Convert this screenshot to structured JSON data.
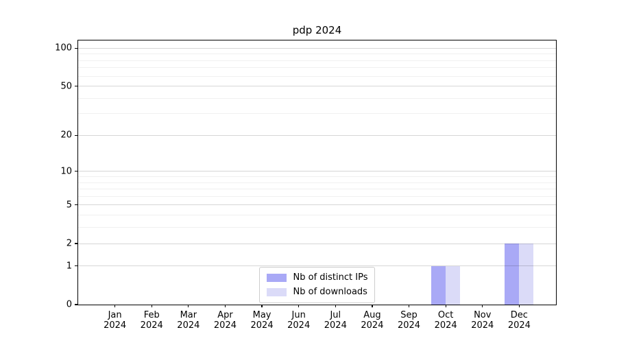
{
  "chart_data": {
    "type": "bar",
    "title": "pdp 2024",
    "categories": [
      {
        "month": "Jan",
        "year": "2024"
      },
      {
        "month": "Feb",
        "year": "2024"
      },
      {
        "month": "Mar",
        "year": "2024"
      },
      {
        "month": "Apr",
        "year": "2024"
      },
      {
        "month": "May",
        "year": "2024"
      },
      {
        "month": "Jun",
        "year": "2024"
      },
      {
        "month": "Jul",
        "year": "2024"
      },
      {
        "month": "Aug",
        "year": "2024"
      },
      {
        "month": "Sep",
        "year": "2024"
      },
      {
        "month": "Oct",
        "year": "2024"
      },
      {
        "month": "Nov",
        "year": "2024"
      },
      {
        "month": "Dec",
        "year": "2024"
      }
    ],
    "series": [
      {
        "name": "Nb of distinct IPs",
        "color": "#a9a9f6",
        "values": [
          0,
          0,
          0,
          0,
          0,
          0,
          0,
          0,
          0,
          1,
          0,
          2
        ]
      },
      {
        "name": "Nb of downloads",
        "color": "#dbdbf8",
        "values": [
          0,
          0,
          0,
          0,
          0,
          0,
          0,
          0,
          0,
          1,
          0,
          2
        ]
      }
    ],
    "y_axis": {
      "scale": "log1p",
      "range": [
        0,
        115
      ],
      "major_ticks": [
        0,
        1,
        2,
        5,
        10,
        20,
        50,
        100
      ],
      "minor_ticks": [
        3,
        4,
        6,
        7,
        8,
        9,
        30,
        40,
        60,
        70,
        80,
        90
      ],
      "grid": true
    },
    "legend": {
      "position": "lower center"
    }
  }
}
